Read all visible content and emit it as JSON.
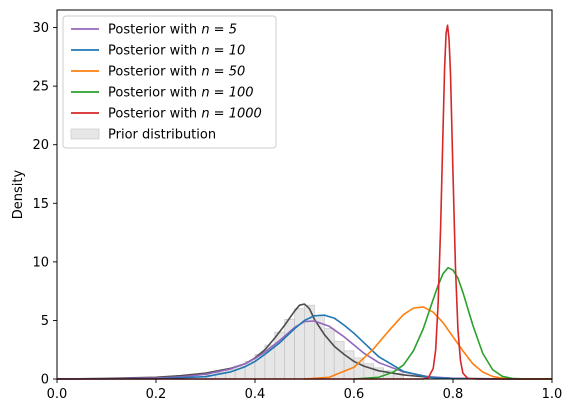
{
  "chart_data": {
    "type": "line",
    "title": "",
    "xlabel": "",
    "ylabel": "Density",
    "xlim": [
      0.0,
      1.0
    ],
    "ylim": [
      0,
      31.5
    ],
    "xticks": [
      0.0,
      0.2,
      0.4,
      0.6,
      0.8,
      1.0
    ],
    "xtick_labels": [
      "0.0",
      "0.2",
      "0.4",
      "0.6",
      "0.8",
      "1.0"
    ],
    "yticks": [
      0,
      5,
      10,
      15,
      20,
      25,
      30
    ],
    "ytick_labels": [
      "0",
      "5",
      "10",
      "15",
      "20",
      "25",
      "30"
    ],
    "grid": false,
    "legend_position": "top-left",
    "series": [
      {
        "name_prefix": "Posterior with ",
        "name_math": "n = 5",
        "color": "#9467bd",
        "x": [
          0.0,
          0.1,
          0.2,
          0.25,
          0.3,
          0.35,
          0.38,
          0.4,
          0.42,
          0.45,
          0.48,
          0.5,
          0.52,
          0.55,
          0.58,
          0.6,
          0.62,
          0.65,
          0.7,
          0.75,
          0.8,
          0.85,
          1.0
        ],
        "y": [
          0,
          0.02,
          0.08,
          0.18,
          0.4,
          0.85,
          1.3,
          1.75,
          2.3,
          3.3,
          4.4,
          4.9,
          4.95,
          4.5,
          3.6,
          2.9,
          2.2,
          1.4,
          0.6,
          0.2,
          0.06,
          0.01,
          0
        ]
      },
      {
        "name_prefix": "Posterior with ",
        "name_math": "n = 10",
        "color": "#1f77b4",
        "x": [
          0.0,
          0.2,
          0.3,
          0.35,
          0.38,
          0.4,
          0.42,
          0.45,
          0.48,
          0.5,
          0.52,
          0.54,
          0.56,
          0.58,
          0.6,
          0.62,
          0.65,
          0.7,
          0.75,
          0.8,
          1.0
        ],
        "y": [
          0,
          0.02,
          0.2,
          0.6,
          1.05,
          1.5,
          2.1,
          3.1,
          4.3,
          5.0,
          5.4,
          5.45,
          5.2,
          4.6,
          3.9,
          3.1,
          1.9,
          0.65,
          0.15,
          0.03,
          0
        ]
      },
      {
        "name_prefix": "Posterior with ",
        "name_math": "n = 50",
        "color": "#ff7f0e",
        "x": [
          0.5,
          0.55,
          0.6,
          0.64,
          0.67,
          0.7,
          0.72,
          0.74,
          0.76,
          0.78,
          0.8,
          0.82,
          0.84,
          0.86,
          0.88,
          0.9,
          0.93,
          0.96,
          1.0
        ],
        "y": [
          0,
          0.15,
          1.0,
          2.6,
          4.1,
          5.5,
          6.05,
          6.15,
          5.7,
          4.8,
          3.6,
          2.4,
          1.3,
          0.6,
          0.22,
          0.06,
          0.01,
          0,
          0
        ]
      },
      {
        "name_prefix": "Posterior with ",
        "name_math": "n = 100",
        "color": "#2ca02c",
        "x": [
          0.6,
          0.65,
          0.68,
          0.7,
          0.72,
          0.74,
          0.76,
          0.77,
          0.78,
          0.79,
          0.8,
          0.81,
          0.82,
          0.84,
          0.86,
          0.88,
          0.9,
          0.92,
          0.95,
          1.0
        ],
        "y": [
          0,
          0.15,
          0.6,
          1.2,
          2.4,
          4.3,
          6.8,
          8.0,
          9.0,
          9.5,
          9.3,
          8.6,
          7.4,
          4.6,
          2.2,
          0.8,
          0.22,
          0.05,
          0,
          0
        ]
      },
      {
        "name_prefix": "Posterior with ",
        "name_math": "n = 1000",
        "color": "#d62728",
        "x": [
          0.0,
          0.74,
          0.75,
          0.76,
          0.765,
          0.77,
          0.775,
          0.78,
          0.783,
          0.786,
          0.789,
          0.792,
          0.795,
          0.8,
          0.805,
          0.81,
          0.815,
          0.82,
          0.83,
          0.85,
          1.0
        ],
        "y": [
          0,
          0,
          0.1,
          0.9,
          2.5,
          6.5,
          13.0,
          21.5,
          26.5,
          29.5,
          30.2,
          29.0,
          26.0,
          17.5,
          9.5,
          4.2,
          1.6,
          0.5,
          0.04,
          0,
          0
        ]
      }
    ],
    "prior_curve": {
      "color": "#4d4d4d",
      "x": [
        0.0,
        0.1,
        0.2,
        0.25,
        0.3,
        0.35,
        0.38,
        0.4,
        0.42,
        0.44,
        0.46,
        0.48,
        0.49,
        0.5,
        0.51,
        0.52,
        0.54,
        0.56,
        0.58,
        0.6,
        0.62,
        0.65,
        0.7,
        0.75,
        0.8,
        0.9,
        1.0
      ],
      "y": [
        0,
        0.05,
        0.15,
        0.28,
        0.5,
        0.9,
        1.3,
        1.8,
        2.5,
        3.5,
        4.6,
        5.8,
        6.3,
        6.4,
        6.0,
        5.1,
        3.8,
        2.8,
        2.1,
        1.5,
        1.1,
        0.7,
        0.35,
        0.15,
        0.06,
        0.01,
        0
      ]
    },
    "prior_histogram": {
      "name": "Prior distribution",
      "fill": "#e6e6e6",
      "edge": "#bfbfbf",
      "bin_edges": [
        0.3,
        0.32,
        0.34,
        0.36,
        0.38,
        0.4,
        0.42,
        0.44,
        0.46,
        0.48,
        0.5,
        0.52,
        0.54,
        0.56,
        0.58,
        0.6,
        0.62,
        0.64,
        0.66,
        0.68,
        0.7
      ],
      "values": [
        0.35,
        0.55,
        0.8,
        1.1,
        1.5,
        2.1,
        2.9,
        4.0,
        5.1,
        6.0,
        6.3,
        5.4,
        4.3,
        3.2,
        2.4,
        1.8,
        1.3,
        0.95,
        0.7,
        0.5
      ]
    }
  }
}
